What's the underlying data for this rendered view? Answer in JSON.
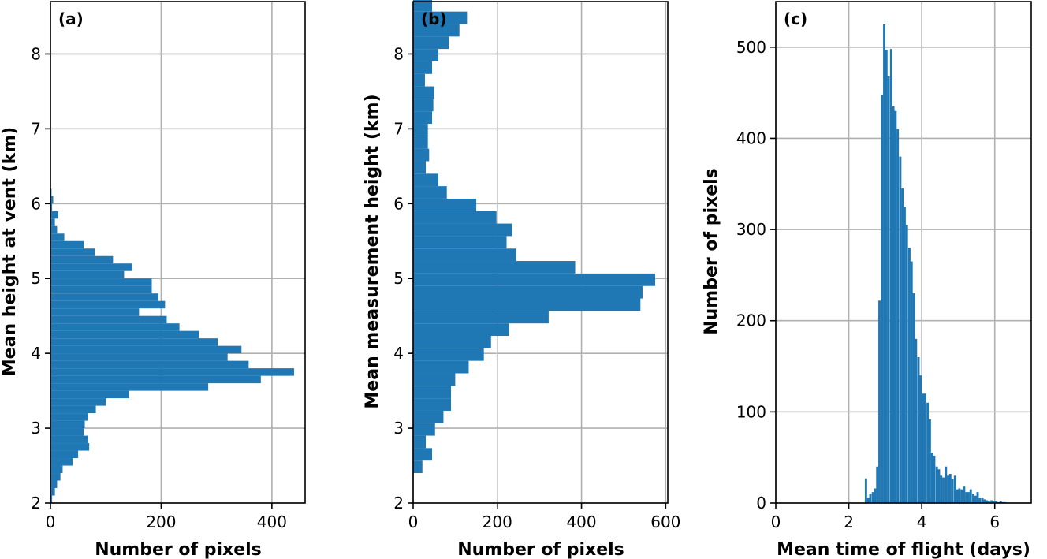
{
  "colors": {
    "bar": "#1f77b4",
    "grid": "#b0b0b0",
    "axis": "#000000"
  },
  "chart_data": [
    {
      "type": "bar",
      "orientation": "horizontal",
      "panel_label": "(a)",
      "xlabel": "Number of pixels",
      "ylabel": "Mean height at vent (km)",
      "xlim": [
        0,
        460
      ],
      "ylim": [
        2,
        8.7
      ],
      "xticks": [
        0,
        200,
        400
      ],
      "yticks": [
        2,
        3,
        4,
        5,
        6,
        7,
        8
      ],
      "grid": true,
      "bin_width": 0.1,
      "bins": [
        {
          "y": 2.0,
          "value": 3
        },
        {
          "y": 2.1,
          "value": 8
        },
        {
          "y": 2.2,
          "value": 12
        },
        {
          "y": 2.3,
          "value": 18
        },
        {
          "y": 2.4,
          "value": 22
        },
        {
          "y": 2.5,
          "value": 40
        },
        {
          "y": 2.6,
          "value": 50
        },
        {
          "y": 2.7,
          "value": 70
        },
        {
          "y": 2.8,
          "value": 68
        },
        {
          "y": 2.9,
          "value": 60
        },
        {
          "y": 3.0,
          "value": 62
        },
        {
          "y": 3.1,
          "value": 68
        },
        {
          "y": 3.2,
          "value": 82
        },
        {
          "y": 3.3,
          "value": 100
        },
        {
          "y": 3.4,
          "value": 142
        },
        {
          "y": 3.5,
          "value": 285
        },
        {
          "y": 3.6,
          "value": 380
        },
        {
          "y": 3.7,
          "value": 440
        },
        {
          "y": 3.8,
          "value": 358
        },
        {
          "y": 3.9,
          "value": 320
        },
        {
          "y": 4.0,
          "value": 345
        },
        {
          "y": 4.1,
          "value": 302
        },
        {
          "y": 4.2,
          "value": 268
        },
        {
          "y": 4.3,
          "value": 233
        },
        {
          "y": 4.4,
          "value": 210
        },
        {
          "y": 4.5,
          "value": 160
        },
        {
          "y": 4.6,
          "value": 207
        },
        {
          "y": 4.7,
          "value": 195
        },
        {
          "y": 4.8,
          "value": 183
        },
        {
          "y": 4.9,
          "value": 183
        },
        {
          "y": 5.0,
          "value": 133
        },
        {
          "y": 5.1,
          "value": 148
        },
        {
          "y": 5.2,
          "value": 113
        },
        {
          "y": 5.3,
          "value": 80
        },
        {
          "y": 5.4,
          "value": 60
        },
        {
          "y": 5.5,
          "value": 25
        },
        {
          "y": 5.6,
          "value": 12
        },
        {
          "y": 5.7,
          "value": 8
        },
        {
          "y": 5.8,
          "value": 14
        },
        {
          "y": 5.9,
          "value": 3
        },
        {
          "y": 6.0,
          "value": 5
        },
        {
          "y": 6.1,
          "value": 2
        }
      ]
    },
    {
      "type": "bar",
      "orientation": "horizontal",
      "panel_label": "(b)",
      "xlabel": "Number of pixels",
      "ylabel": "Mean measurement height (km)",
      "xlim": [
        0,
        605
      ],
      "ylim": [
        2,
        8.7
      ],
      "xticks": [
        0,
        200,
        400,
        600
      ],
      "yticks": [
        2,
        3,
        4,
        5,
        6,
        7,
        8
      ],
      "grid": true,
      "bin_width": 0.1667,
      "bins": [
        {
          "y": 2.4,
          "value": 22
        },
        {
          "y": 2.567,
          "value": 45
        },
        {
          "y": 2.733,
          "value": 30
        },
        {
          "y": 2.9,
          "value": 52
        },
        {
          "y": 3.067,
          "value": 72
        },
        {
          "y": 3.233,
          "value": 90
        },
        {
          "y": 3.4,
          "value": 90
        },
        {
          "y": 3.567,
          "value": 100
        },
        {
          "y": 3.733,
          "value": 132
        },
        {
          "y": 3.9,
          "value": 168
        },
        {
          "y": 4.067,
          "value": 185
        },
        {
          "y": 4.233,
          "value": 228
        },
        {
          "y": 4.4,
          "value": 322
        },
        {
          "y": 4.567,
          "value": 540
        },
        {
          "y": 4.733,
          "value": 545
        },
        {
          "y": 4.9,
          "value": 575
        },
        {
          "y": 5.067,
          "value": 385
        },
        {
          "y": 5.233,
          "value": 245
        },
        {
          "y": 5.4,
          "value": 222
        },
        {
          "y": 5.567,
          "value": 235
        },
        {
          "y": 5.733,
          "value": 198
        },
        {
          "y": 5.9,
          "value": 150
        },
        {
          "y": 6.067,
          "value": 80
        },
        {
          "y": 6.233,
          "value": 60
        },
        {
          "y": 6.4,
          "value": 30
        },
        {
          "y": 6.567,
          "value": 38
        },
        {
          "y": 6.733,
          "value": 35
        },
        {
          "y": 6.9,
          "value": 35
        },
        {
          "y": 7.067,
          "value": 45
        },
        {
          "y": 7.233,
          "value": 48
        },
        {
          "y": 7.4,
          "value": 50
        },
        {
          "y": 7.567,
          "value": 28
        },
        {
          "y": 7.733,
          "value": 45
        },
        {
          "y": 7.9,
          "value": 60
        },
        {
          "y": 8.067,
          "value": 85
        },
        {
          "y": 8.233,
          "value": 110
        },
        {
          "y": 8.4,
          "value": 128
        },
        {
          "y": 8.567,
          "value": 45
        }
      ],
      "top_bins": [
        {
          "y": 8.1,
          "value": 45
        },
        {
          "y": 8.2,
          "value": 35
        },
        {
          "y": 8.3,
          "value": 45
        }
      ]
    },
    {
      "type": "bar",
      "orientation": "vertical",
      "panel_label": "(c)",
      "xlabel": "Mean time of flight (days)",
      "ylabel": "Number of pixels",
      "xlim": [
        0,
        7
      ],
      "ylim": [
        0,
        550
      ],
      "xticks": [
        0,
        2,
        4,
        6
      ],
      "yticks": [
        0,
        100,
        200,
        300,
        400,
        500
      ],
      "grid": true,
      "bin_width": 0.0625,
      "bins": [
        {
          "x": 2.44,
          "value": 27
        },
        {
          "x": 2.5,
          "value": 6
        },
        {
          "x": 2.56,
          "value": 10
        },
        {
          "x": 2.63,
          "value": 12
        },
        {
          "x": 2.69,
          "value": 16
        },
        {
          "x": 2.75,
          "value": 40
        },
        {
          "x": 2.81,
          "value": 222
        },
        {
          "x": 2.88,
          "value": 448
        },
        {
          "x": 2.94,
          "value": 525
        },
        {
          "x": 3.0,
          "value": 497
        },
        {
          "x": 3.06,
          "value": 468
        },
        {
          "x": 3.13,
          "value": 498
        },
        {
          "x": 3.19,
          "value": 435
        },
        {
          "x": 3.25,
          "value": 430
        },
        {
          "x": 3.31,
          "value": 410
        },
        {
          "x": 3.38,
          "value": 380
        },
        {
          "x": 3.44,
          "value": 345
        },
        {
          "x": 3.5,
          "value": 325
        },
        {
          "x": 3.56,
          "value": 305
        },
        {
          "x": 3.63,
          "value": 280
        },
        {
          "x": 3.69,
          "value": 265
        },
        {
          "x": 3.75,
          "value": 230
        },
        {
          "x": 3.81,
          "value": 180
        },
        {
          "x": 3.88,
          "value": 160
        },
        {
          "x": 3.94,
          "value": 140
        },
        {
          "x": 4.0,
          "value": 120
        },
        {
          "x": 4.06,
          "value": 120
        },
        {
          "x": 4.13,
          "value": 110
        },
        {
          "x": 4.19,
          "value": 92
        },
        {
          "x": 4.25,
          "value": 55
        },
        {
          "x": 4.31,
          "value": 52
        },
        {
          "x": 4.38,
          "value": 40
        },
        {
          "x": 4.44,
          "value": 37
        },
        {
          "x": 4.5,
          "value": 30
        },
        {
          "x": 4.56,
          "value": 28
        },
        {
          "x": 4.63,
          "value": 40
        },
        {
          "x": 4.69,
          "value": 30
        },
        {
          "x": 4.75,
          "value": 32
        },
        {
          "x": 4.81,
          "value": 26
        },
        {
          "x": 4.88,
          "value": 30
        },
        {
          "x": 4.94,
          "value": 15
        },
        {
          "x": 5.0,
          "value": 16
        },
        {
          "x": 5.06,
          "value": 15
        },
        {
          "x": 5.13,
          "value": 18
        },
        {
          "x": 5.19,
          "value": 12
        },
        {
          "x": 5.25,
          "value": 12
        },
        {
          "x": 5.31,
          "value": 15
        },
        {
          "x": 5.38,
          "value": 10
        },
        {
          "x": 5.44,
          "value": 8
        },
        {
          "x": 5.5,
          "value": 12
        },
        {
          "x": 5.56,
          "value": 6
        },
        {
          "x": 5.63,
          "value": 6
        },
        {
          "x": 5.69,
          "value": 4
        },
        {
          "x": 5.75,
          "value": 3
        },
        {
          "x": 5.81,
          "value": 2
        },
        {
          "x": 5.88,
          "value": 3
        },
        {
          "x": 5.94,
          "value": 2
        },
        {
          "x": 6.0,
          "value": 2
        },
        {
          "x": 6.06,
          "value": 1
        },
        {
          "x": 6.13,
          "value": 2
        },
        {
          "x": 6.19,
          "value": 1
        },
        {
          "x": 6.25,
          "value": 1
        }
      ]
    }
  ]
}
